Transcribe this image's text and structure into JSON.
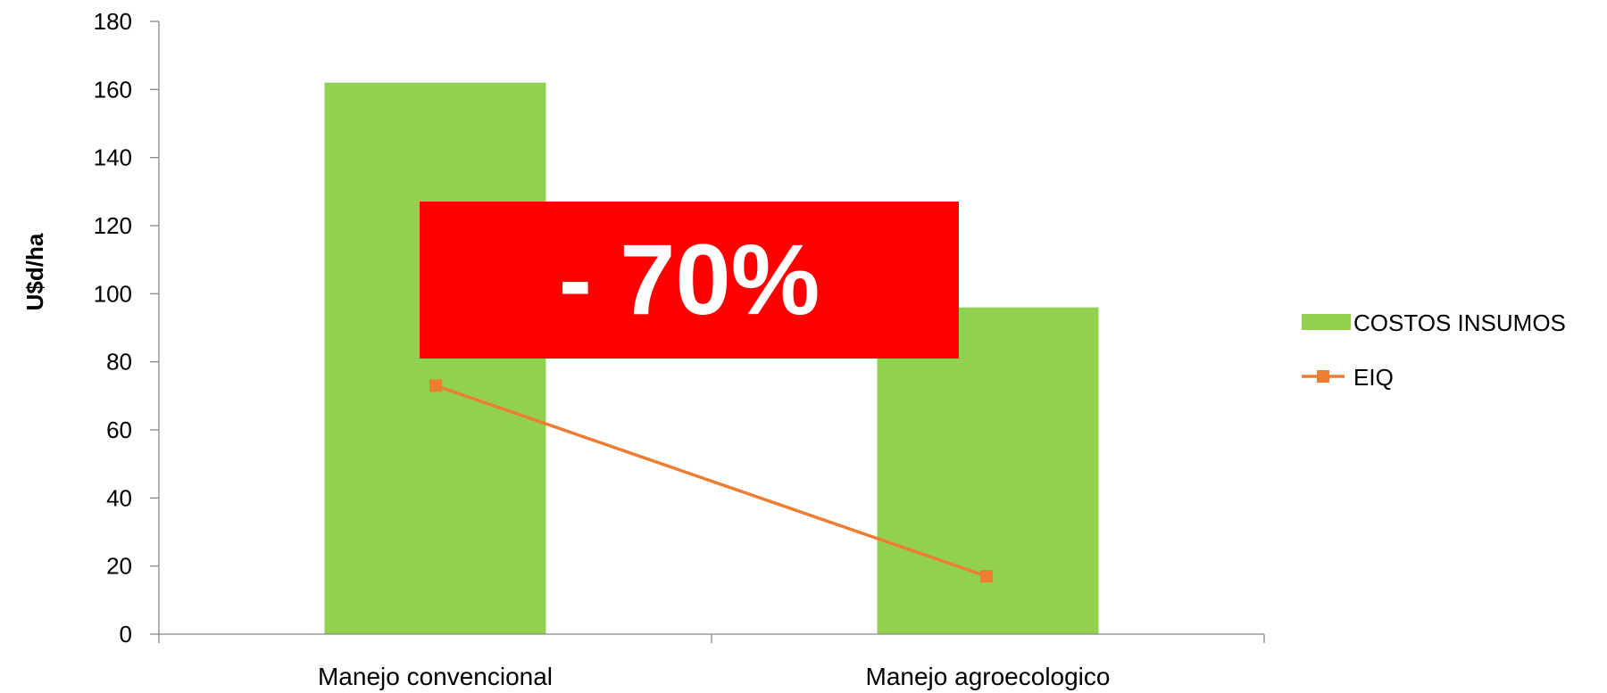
{
  "chart_data": {
    "type": "bar",
    "categories": [
      "Manejo convencional",
      "Manejo agroecologico"
    ],
    "series": [
      {
        "name": "COSTOS INSUMOS",
        "type": "bar",
        "values": [
          162,
          96
        ],
        "color": "#92D050"
      },
      {
        "name": "EIQ",
        "type": "line",
        "values": [
          73,
          17
        ],
        "color": "#ED7D31"
      }
    ],
    "ylabel": "U$d/ha",
    "xlabel": "",
    "ylim": [
      0,
      180
    ],
    "yticks": [
      0,
      20,
      40,
      60,
      80,
      100,
      120,
      140,
      160,
      180
    ],
    "grid": false,
    "legend_position": "right",
    "annotation": {
      "text": "- 70%",
      "background": "#FF0000",
      "color": "#FFFFFF"
    }
  }
}
